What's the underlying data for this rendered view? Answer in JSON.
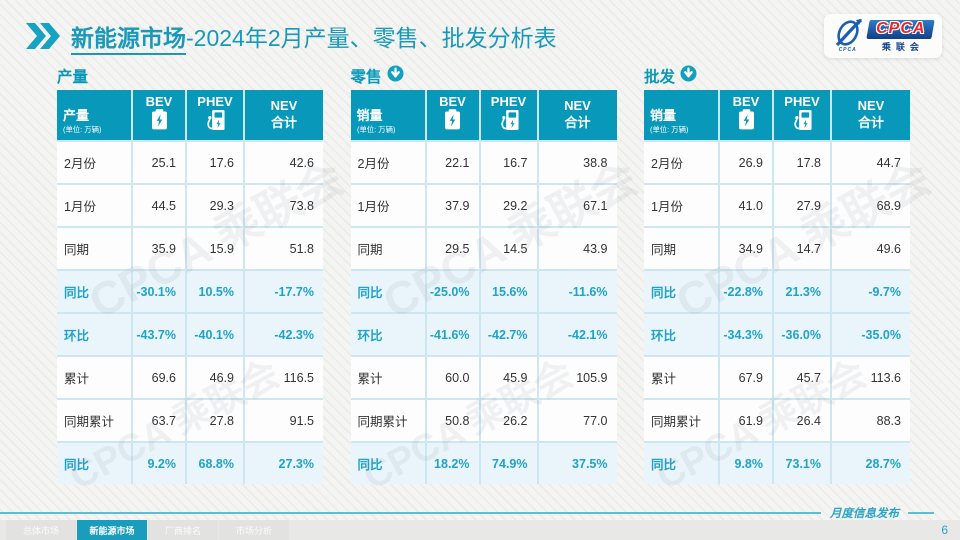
{
  "header": {
    "title_emphasis": "新能源市场",
    "title_rest": "-2024年2月产量、零售、批发分析表"
  },
  "logo": {
    "mark_text": "CPCA",
    "acronym": "CPCA",
    "subtitle": "乘联会"
  },
  "watermark": "CPCA 乘联会",
  "colors": {
    "accent_teal": "#0899ba",
    "title_teal": "#1899b9",
    "highlight_text": "#1fa3c8",
    "highlight_row_bg": "#e9f5fb",
    "grid_line": "#cde7f2",
    "logo_blue": "#123f86",
    "logo_red": "#e8262d"
  },
  "tables": [
    {
      "section_title": "产量",
      "trend_icon": false,
      "measure_label": "产量",
      "unit": "(单位: 万辆)",
      "columns": {
        "bev": "BEV",
        "phev": "PHEV",
        "total": [
          "NEV",
          "合计"
        ]
      },
      "rows": [
        {
          "label": "2月份",
          "values": [
            "25.1",
            "17.6",
            "42.6"
          ],
          "highlight": false
        },
        {
          "label": "1月份",
          "values": [
            "44.5",
            "29.3",
            "73.8"
          ],
          "highlight": false
        },
        {
          "label": "同期",
          "values": [
            "35.9",
            "15.9",
            "51.8"
          ],
          "highlight": false
        },
        {
          "label": "同比",
          "values": [
            "-30.1%",
            "10.5%",
            "-17.7%"
          ],
          "highlight": true
        },
        {
          "label": "环比",
          "values": [
            "-43.7%",
            "-40.1%",
            "-42.3%"
          ],
          "highlight": true
        },
        {
          "label": "累计",
          "values": [
            "69.6",
            "46.9",
            "116.5"
          ],
          "highlight": false
        },
        {
          "label": "同期累计",
          "values": [
            "63.7",
            "27.8",
            "91.5"
          ],
          "highlight": false
        },
        {
          "label": "同比",
          "values": [
            "9.2%",
            "68.8%",
            "27.3%"
          ],
          "highlight": true
        }
      ]
    },
    {
      "section_title": "零售",
      "trend_icon": true,
      "measure_label": "销量",
      "unit": "(单位: 万辆)",
      "columns": {
        "bev": "BEV",
        "phev": "PHEV",
        "total": [
          "NEV",
          "合计"
        ]
      },
      "rows": [
        {
          "label": "2月份",
          "values": [
            "22.1",
            "16.7",
            "38.8"
          ],
          "highlight": false
        },
        {
          "label": "1月份",
          "values": [
            "37.9",
            "29.2",
            "67.1"
          ],
          "highlight": false
        },
        {
          "label": "同期",
          "values": [
            "29.5",
            "14.5",
            "43.9"
          ],
          "highlight": false
        },
        {
          "label": "同比",
          "values": [
            "-25.0%",
            "15.6%",
            "-11.6%"
          ],
          "highlight": true
        },
        {
          "label": "环比",
          "values": [
            "-41.6%",
            "-42.7%",
            "-42.1%"
          ],
          "highlight": true
        },
        {
          "label": "累计",
          "values": [
            "60.0",
            "45.9",
            "105.9"
          ],
          "highlight": false
        },
        {
          "label": "同期累计",
          "values": [
            "50.8",
            "26.2",
            "77.0"
          ],
          "highlight": false
        },
        {
          "label": "同比",
          "values": [
            "18.2%",
            "74.9%",
            "37.5%"
          ],
          "highlight": true
        }
      ]
    },
    {
      "section_title": "批发",
      "trend_icon": true,
      "measure_label": "销量",
      "unit": "(单位: 万辆)",
      "columns": {
        "bev": "BEV",
        "phev": "PHEV",
        "total": [
          "NEV",
          "合计"
        ]
      },
      "rows": [
        {
          "label": "2月份",
          "values": [
            "26.9",
            "17.8",
            "44.7"
          ],
          "highlight": false
        },
        {
          "label": "1月份",
          "values": [
            "41.0",
            "27.9",
            "68.9"
          ],
          "highlight": false
        },
        {
          "label": "同期",
          "values": [
            "34.9",
            "14.7",
            "49.6"
          ],
          "highlight": false
        },
        {
          "label": "同比",
          "values": [
            "-22.8%",
            "21.3%",
            "-9.7%"
          ],
          "highlight": true
        },
        {
          "label": "环比",
          "values": [
            "-34.3%",
            "-36.0%",
            "-35.0%"
          ],
          "highlight": true
        },
        {
          "label": "累计",
          "values": [
            "67.9",
            "45.7",
            "113.6"
          ],
          "highlight": false
        },
        {
          "label": "同期累计",
          "values": [
            "61.9",
            "26.4",
            "88.3"
          ],
          "highlight": false
        },
        {
          "label": "同比",
          "values": [
            "9.8%",
            "73.1%",
            "28.7%"
          ],
          "highlight": true
        }
      ]
    }
  ],
  "footer": {
    "script_text": "月度信息发布",
    "page_number": "6",
    "tabs": [
      {
        "label": "总体市场",
        "active": false
      },
      {
        "label": "新能源市场",
        "active": true
      },
      {
        "label": "厂商排名",
        "active": false
      },
      {
        "label": "市场分析",
        "active": false
      }
    ]
  }
}
